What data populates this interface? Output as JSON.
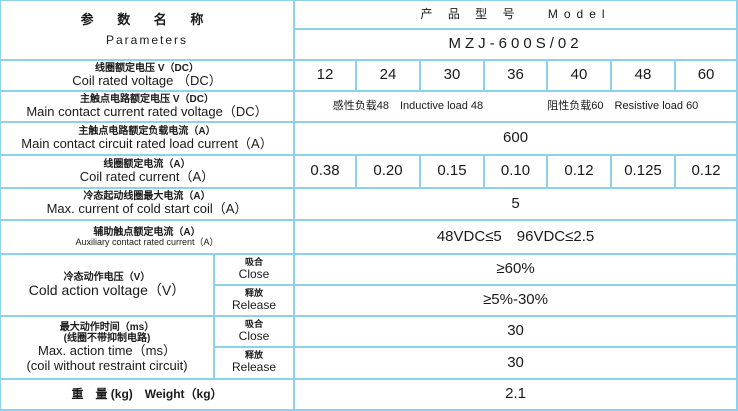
{
  "header": {
    "params_zh": "参 数 名 称",
    "params_en": "Parameters",
    "model_label": "产 品 型 号　 Model",
    "model": "MZJ-600S/02"
  },
  "rows": {
    "coil_voltage": {
      "zh": "线圈额定电压 V（DC）",
      "en": "Coil rated voltage （DC）",
      "values": [
        "12",
        "24",
        "30",
        "36",
        "40",
        "48",
        "60"
      ]
    },
    "main_voltage": {
      "zh": "主触点电路额定电压 V（DC）",
      "en": "Main contact current rated voltage（DC）",
      "inductive": "感性负载48　Inductive load 48",
      "resistive": "阻性负载60　Resistive load 60"
    },
    "main_current": {
      "zh": "主触点电路额定负载电流（A）",
      "en": "Main contact circuit rated load current（A）",
      "value": "600"
    },
    "coil_current": {
      "zh": "线圈额定电流（A）",
      "en": "Coil rated current（A）",
      "values": [
        "0.38",
        "0.20",
        "0.15",
        "0.10",
        "0.12",
        "0.125",
        "0.12"
      ]
    },
    "cold_start": {
      "zh": "冷态起动线圈最大电流（A）",
      "en": "Max. current of cold start coil（A）",
      "value": "5"
    },
    "aux_current": {
      "zh": "辅助触点额定电流（A）",
      "en": "Auxiliary contact rated current（A）",
      "value": "48VDC≤5　96VDC≤2.5"
    },
    "cold_action": {
      "zh": "冷态动作电压（V）",
      "en": "Cold action voltage（V）",
      "close_zh": "吸合",
      "close_en": "Close",
      "close_value": "≥60%",
      "release_zh": "释放",
      "release_en": "Release",
      "release_value": "≥5%-30%"
    },
    "action_time": {
      "zh1": "最大动作时间（ms）",
      "zh2": "(线圈不带抑制电路)",
      "en1": "Max. action time（ms）",
      "en2": "(coil without restraint circuit)",
      "close_zh": "吸合",
      "close_en": "Close",
      "close_value": "30",
      "release_zh": "释放",
      "release_en": "Release",
      "release_value": "30"
    },
    "weight": {
      "label": "重　量 (kg)　Weight（kg）",
      "value": "2.1"
    }
  }
}
